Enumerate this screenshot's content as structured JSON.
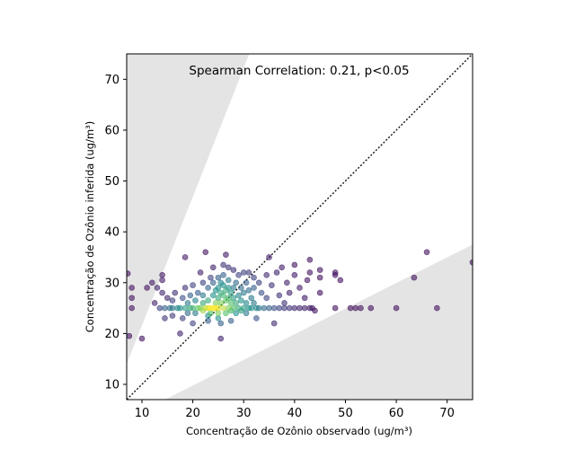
{
  "chart_data": {
    "type": "scatter",
    "title": "",
    "annotation": "Spearman Correlation: 0.21, p<0.05",
    "xlabel": "Concentração de Ozônio observado (ug/m³)",
    "ylabel": "Concentração de Ozônio inferida (ug/m³)",
    "xlim": [
      7,
      75
    ],
    "ylim": [
      7,
      75
    ],
    "xticks": [
      10,
      20,
      30,
      40,
      50,
      60,
      70
    ],
    "yticks": [
      10,
      20,
      30,
      40,
      50,
      60,
      70
    ],
    "grid": false,
    "identity_line": true,
    "shaded_regions": [
      {
        "name": "upper-factor-band",
        "polygon": [
          [
            7,
            14
          ],
          [
            7,
            75
          ],
          [
            31.1,
            75
          ]
        ]
      },
      {
        "name": "lower-factor-band",
        "polygon": [
          [
            14.5,
            7
          ],
          [
            75,
            7
          ],
          [
            75,
            37.5
          ]
        ]
      }
    ],
    "colors": {
      "shade": "#e4e4e4",
      "identity_line": "#000000",
      "density_scale": [
        "#440154",
        "#3b528b",
        "#21918c",
        "#5ec962",
        "#fde725"
      ]
    },
    "points": [
      [
        7.2,
        31.8,
        0.05
      ],
      [
        8.0,
        29.0,
        0.05
      ],
      [
        8.0,
        27.0,
        0.05
      ],
      [
        8.0,
        25.0,
        0.05
      ],
      [
        7.5,
        19.5,
        0.05
      ],
      [
        10.0,
        19.0,
        0.05
      ],
      [
        11.0,
        29.0,
        0.05
      ],
      [
        12.0,
        30.0,
        0.08
      ],
      [
        12.5,
        26.0,
        0.1
      ],
      [
        13.0,
        29.0,
        0.1
      ],
      [
        13.5,
        25.0,
        0.2
      ],
      [
        14.0,
        30.5,
        0.08
      ],
      [
        14.0,
        31.5,
        0.06
      ],
      [
        14.0,
        28.0,
        0.12
      ],
      [
        14.5,
        25.0,
        0.3
      ],
      [
        14.5,
        23.0,
        0.15
      ],
      [
        15.0,
        27.0,
        0.12
      ],
      [
        15.5,
        25.0,
        0.35
      ],
      [
        16.0,
        25.0,
        0.4
      ],
      [
        16.0,
        26.5,
        0.2
      ],
      [
        16.0,
        23.5,
        0.18
      ],
      [
        16.5,
        28.0,
        0.15
      ],
      [
        17.0,
        25.0,
        0.45
      ],
      [
        17.5,
        20.0,
        0.1
      ],
      [
        17.5,
        25.0,
        0.5
      ],
      [
        18.0,
        27.0,
        0.25
      ],
      [
        18.0,
        23.0,
        0.2
      ],
      [
        18.5,
        29.0,
        0.15
      ],
      [
        18.5,
        35.0,
        0.08
      ],
      [
        18.5,
        25.0,
        0.55
      ],
      [
        19.0,
        26.0,
        0.4
      ],
      [
        19.0,
        24.0,
        0.35
      ],
      [
        19.5,
        27.5,
        0.3
      ],
      [
        19.5,
        25.0,
        0.6
      ],
      [
        20.0,
        25.0,
        0.65
      ],
      [
        20.0,
        29.5,
        0.2
      ],
      [
        20.0,
        22.0,
        0.2
      ],
      [
        20.5,
        26.5,
        0.45
      ],
      [
        20.5,
        24.0,
        0.4
      ],
      [
        21.0,
        25.0,
        0.75
      ],
      [
        21.0,
        28.0,
        0.3
      ],
      [
        21.5,
        32.0,
        0.1
      ],
      [
        21.5,
        25.0,
        0.8
      ],
      [
        22.0,
        24.5,
        0.85
      ],
      [
        22.0,
        26.0,
        0.6
      ],
      [
        22.0,
        27.5,
        0.4
      ],
      [
        22.0,
        30.0,
        0.2
      ],
      [
        22.5,
        36.0,
        0.06
      ],
      [
        22.5,
        25.0,
        0.9
      ],
      [
        23.0,
        22.5,
        0.3
      ],
      [
        23.0,
        25.0,
        0.95
      ],
      [
        23.0,
        23.5,
        0.5
      ],
      [
        23.0,
        26.5,
        0.6
      ],
      [
        23.0,
        29.0,
        0.3
      ],
      [
        23.5,
        25.0,
        1.0
      ],
      [
        23.5,
        24.0,
        0.7
      ],
      [
        23.5,
        31.0,
        0.2
      ],
      [
        24.0,
        25.0,
        1.0
      ],
      [
        24.0,
        27.5,
        0.5
      ],
      [
        24.0,
        33.0,
        0.1
      ],
      [
        24.0,
        30.0,
        0.3
      ],
      [
        24.5,
        26.0,
        0.8
      ],
      [
        24.5,
        28.5,
        0.5
      ],
      [
        24.5,
        25.0,
        1.0
      ],
      [
        25.0,
        27.0,
        0.6
      ],
      [
        25.0,
        29.0,
        0.5
      ],
      [
        25.0,
        31.0,
        0.3
      ],
      [
        25.0,
        25.0,
        0.95
      ],
      [
        25.0,
        24.0,
        0.8
      ],
      [
        25.0,
        23.0,
        0.5
      ],
      [
        25.5,
        28.0,
        0.6
      ],
      [
        25.5,
        26.0,
        0.8
      ],
      [
        25.5,
        30.0,
        0.45
      ],
      [
        25.5,
        19.0,
        0.1
      ],
      [
        25.5,
        22.0,
        0.3
      ],
      [
        26.0,
        25.0,
        0.9
      ],
      [
        26.0,
        27.5,
        0.65
      ],
      [
        26.0,
        29.5,
        0.5
      ],
      [
        26.0,
        31.5,
        0.3
      ],
      [
        26.0,
        33.5,
        0.15
      ],
      [
        26.5,
        26.5,
        0.75
      ],
      [
        26.5,
        28.5,
        0.6
      ],
      [
        26.5,
        24.0,
        0.7
      ],
      [
        26.5,
        35.5,
        0.08
      ],
      [
        27.0,
        25.0,
        0.8
      ],
      [
        27.0,
        27.0,
        0.65
      ],
      [
        27.0,
        29.0,
        0.5
      ],
      [
        27.0,
        30.5,
        0.4
      ],
      [
        27.0,
        33.0,
        0.15
      ],
      [
        27.5,
        26.0,
        0.7
      ],
      [
        27.5,
        28.0,
        0.55
      ],
      [
        27.5,
        24.5,
        0.65
      ],
      [
        27.5,
        22.5,
        0.3
      ],
      [
        28.0,
        25.0,
        0.7
      ],
      [
        28.0,
        27.0,
        0.55
      ],
      [
        28.0,
        29.0,
        0.4
      ],
      [
        28.0,
        32.5,
        0.15
      ],
      [
        28.5,
        26.0,
        0.6
      ],
      [
        28.5,
        30.0,
        0.35
      ],
      [
        28.5,
        24.0,
        0.5
      ],
      [
        29.0,
        25.0,
        0.6
      ],
      [
        29.0,
        27.5,
        0.45
      ],
      [
        29.0,
        31.5,
        0.2
      ],
      [
        29.5,
        26.5,
        0.5
      ],
      [
        29.5,
        24.5,
        0.55
      ],
      [
        29.5,
        29.0,
        0.35
      ],
      [
        30.0,
        25.0,
        0.55
      ],
      [
        30.0,
        28.0,
        0.4
      ],
      [
        30.0,
        32.0,
        0.2
      ],
      [
        30.5,
        26.0,
        0.45
      ],
      [
        30.5,
        30.0,
        0.3
      ],
      [
        30.5,
        24.0,
        0.4
      ],
      [
        31.0,
        25.0,
        0.5
      ],
      [
        31.0,
        28.5,
        0.35
      ],
      [
        31.0,
        32.0,
        0.18
      ],
      [
        31.5,
        27.0,
        0.4
      ],
      [
        31.5,
        25.0,
        0.5
      ],
      [
        32.0,
        26.0,
        0.4
      ],
      [
        32.0,
        31.0,
        0.2
      ],
      [
        32.0,
        29.0,
        0.3
      ],
      [
        32.5,
        25.0,
        0.45
      ],
      [
        32.5,
        23.0,
        0.25
      ],
      [
        33.0,
        25.0,
        0.4
      ],
      [
        33.0,
        30.0,
        0.2
      ],
      [
        33.5,
        28.0,
        0.25
      ],
      [
        34.0,
        25.0,
        0.35
      ],
      [
        34.5,
        31.5,
        0.12
      ],
      [
        34.5,
        27.0,
        0.2
      ],
      [
        35.0,
        35.0,
        0.08
      ],
      [
        35.0,
        25.0,
        0.3
      ],
      [
        35.5,
        29.5,
        0.15
      ],
      [
        36.0,
        22.0,
        0.12
      ],
      [
        36.0,
        25.0,
        0.25
      ],
      [
        36.5,
        32.0,
        0.1
      ],
      [
        37.0,
        27.5,
        0.15
      ],
      [
        37.0,
        25.0,
        0.2
      ],
      [
        37.5,
        33.0,
        0.08
      ],
      [
        38.0,
        26.0,
        0.15
      ],
      [
        38.0,
        25.0,
        0.18
      ],
      [
        38.5,
        30.0,
        0.1
      ],
      [
        39.0,
        25.0,
        0.15
      ],
      [
        39.0,
        28.0,
        0.1
      ],
      [
        40.0,
        25.0,
        0.12
      ],
      [
        40.0,
        31.5,
        0.08
      ],
      [
        40.0,
        33.5,
        0.05
      ],
      [
        41.0,
        29.0,
        0.08
      ],
      [
        41.0,
        25.0,
        0.1
      ],
      [
        42.0,
        27.0,
        0.08
      ],
      [
        42.0,
        25.0,
        0.1
      ],
      [
        42.5,
        30.5,
        0.06
      ],
      [
        43.0,
        34.5,
        0.05
      ],
      [
        43.0,
        25.0,
        0.08
      ],
      [
        43.0,
        32.0,
        0.05
      ],
      [
        43.5,
        25.0,
        0.08
      ],
      [
        44.0,
        24.5,
        0.06
      ],
      [
        45.0,
        31.0,
        0.05
      ],
      [
        45.0,
        28.0,
        0.05
      ],
      [
        45.0,
        32.5,
        0.05
      ],
      [
        48.0,
        31.5,
        0.05
      ],
      [
        48.0,
        25.0,
        0.05
      ],
      [
        48.0,
        32.0,
        0.05
      ],
      [
        49.0,
        30.5,
        0.05
      ],
      [
        51.0,
        25.0,
        0.05
      ],
      [
        52.0,
        25.0,
        0.05
      ],
      [
        53.0,
        25.0,
        0.05
      ],
      [
        55.0,
        25.0,
        0.05
      ],
      [
        60.0,
        25.0,
        0.05
      ],
      [
        63.5,
        31.0,
        0.05
      ],
      [
        66.0,
        36.0,
        0.05
      ],
      [
        68.0,
        25.0,
        0.05
      ],
      [
        75.0,
        34.0,
        0.05
      ]
    ]
  }
}
